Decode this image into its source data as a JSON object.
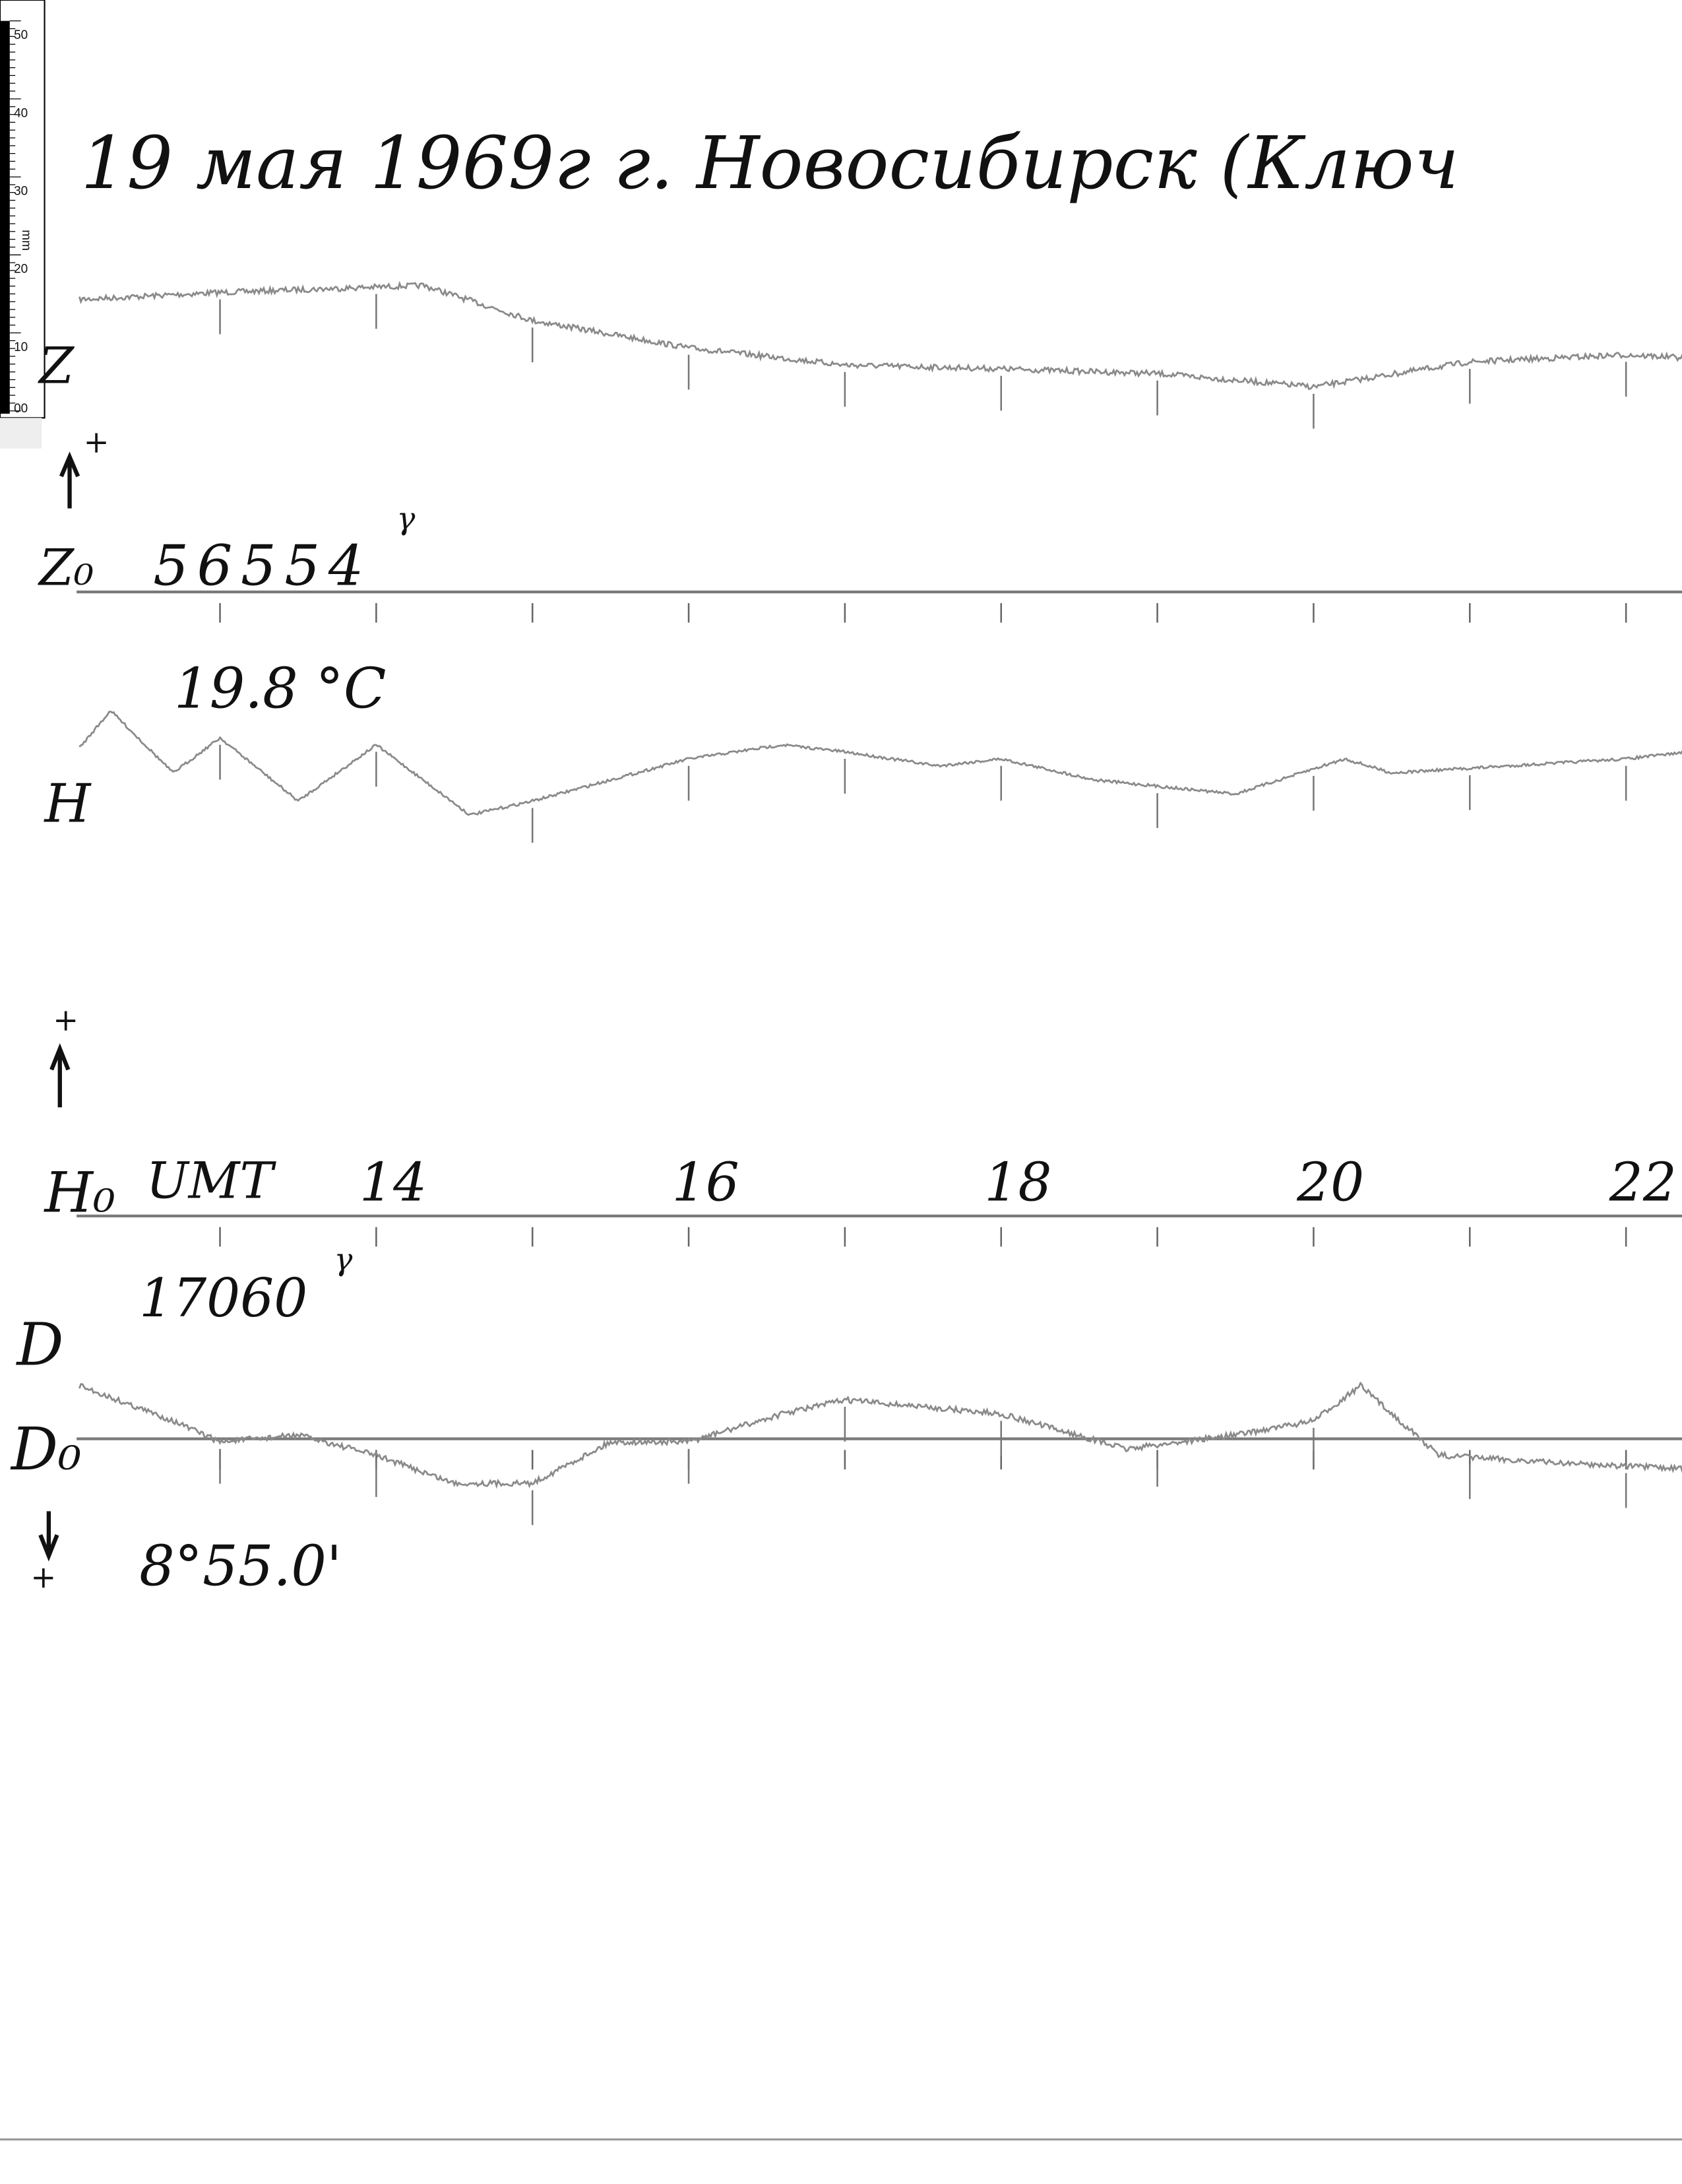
{
  "title": "19 мая 1969г   г. Новосибирск (Ключ",
  "ruler": {
    "unit": "mm",
    "labels": [
      "50",
      "40",
      "30",
      "20",
      "10",
      "00"
    ]
  },
  "labels": {
    "z": "Z",
    "z_plus": "+",
    "z0": "Z₀",
    "z0_value": "56554",
    "z0_unit": "γ",
    "temperature": "19.8 °C",
    "h": "H",
    "h_plus": "+",
    "h0": "H₀",
    "time_label": "UMT",
    "h0_value": "17060",
    "h0_unit": "γ",
    "d": "D",
    "d0": "D₀",
    "d_plus": "+",
    "d0_value": "8°55.0'"
  },
  "colors": {
    "ink": "#111111",
    "trace": "#8a8a8a",
    "baseline": "#7a7a7a"
  },
  "chart_data": {
    "type": "line",
    "title": "19 мая 1969г   г. Новосибирск (Ключ",
    "xlabel": "UMT",
    "x_tick_labels": [
      "14",
      "16",
      "18",
      "20",
      "22"
    ],
    "x_ticks": [
      14,
      16,
      18,
      20,
      22
    ],
    "xlim": [
      12.1,
      22.4
    ],
    "y_unit": "mm (deflection from baseline)",
    "grid": false,
    "series": [
      {
        "name": "Z",
        "baseline": "Z₀ 56554γ",
        "x": [
          12.1,
          13,
          14.3,
          15,
          16,
          17,
          18,
          19,
          20,
          21,
          22,
          22.4
        ],
        "y": [
          37.5,
          38.4,
          39.3,
          34.8,
          31.3,
          29.1,
          28.6,
          28.0,
          26.3,
          29.5,
          30.4,
          30.0
        ]
      },
      {
        "name": "H",
        "baseline": "H₀ 17060γ",
        "x": [
          12.1,
          12.3,
          12.7,
          13,
          13.5,
          14,
          14.6,
          15,
          15.5,
          16,
          16.6,
          17,
          17.6,
          18,
          18.6,
          19.5,
          20.2,
          20.5,
          22,
          22.4
        ],
        "y": [
          60.0,
          64.8,
          56.8,
          61.3,
          53.2,
          60.4,
          51.4,
          53.2,
          55.9,
          58.6,
          60.4,
          59.5,
          57.7,
          58.6,
          55.9,
          54.1,
          58.6,
          56.8,
          58.6,
          59.5
        ]
      },
      {
        "name": "D",
        "baseline": "D₀ 8°55.0'",
        "x": [
          12.1,
          12.7,
          13,
          13.5,
          14,
          14.5,
          15,
          15.5,
          16,
          16.6,
          17,
          18,
          18.8,
          19.5,
          20,
          20.3,
          20.8,
          21.5,
          22.4
        ],
        "y": [
          6.8,
          2.3,
          -0.4,
          0.5,
          -2.1,
          -5.7,
          -5.7,
          -0.4,
          -0.4,
          3.2,
          5.0,
          3.2,
          -1.3,
          0.5,
          2.3,
          6.8,
          -2.1,
          -3.0,
          -3.9
        ]
      }
    ]
  }
}
